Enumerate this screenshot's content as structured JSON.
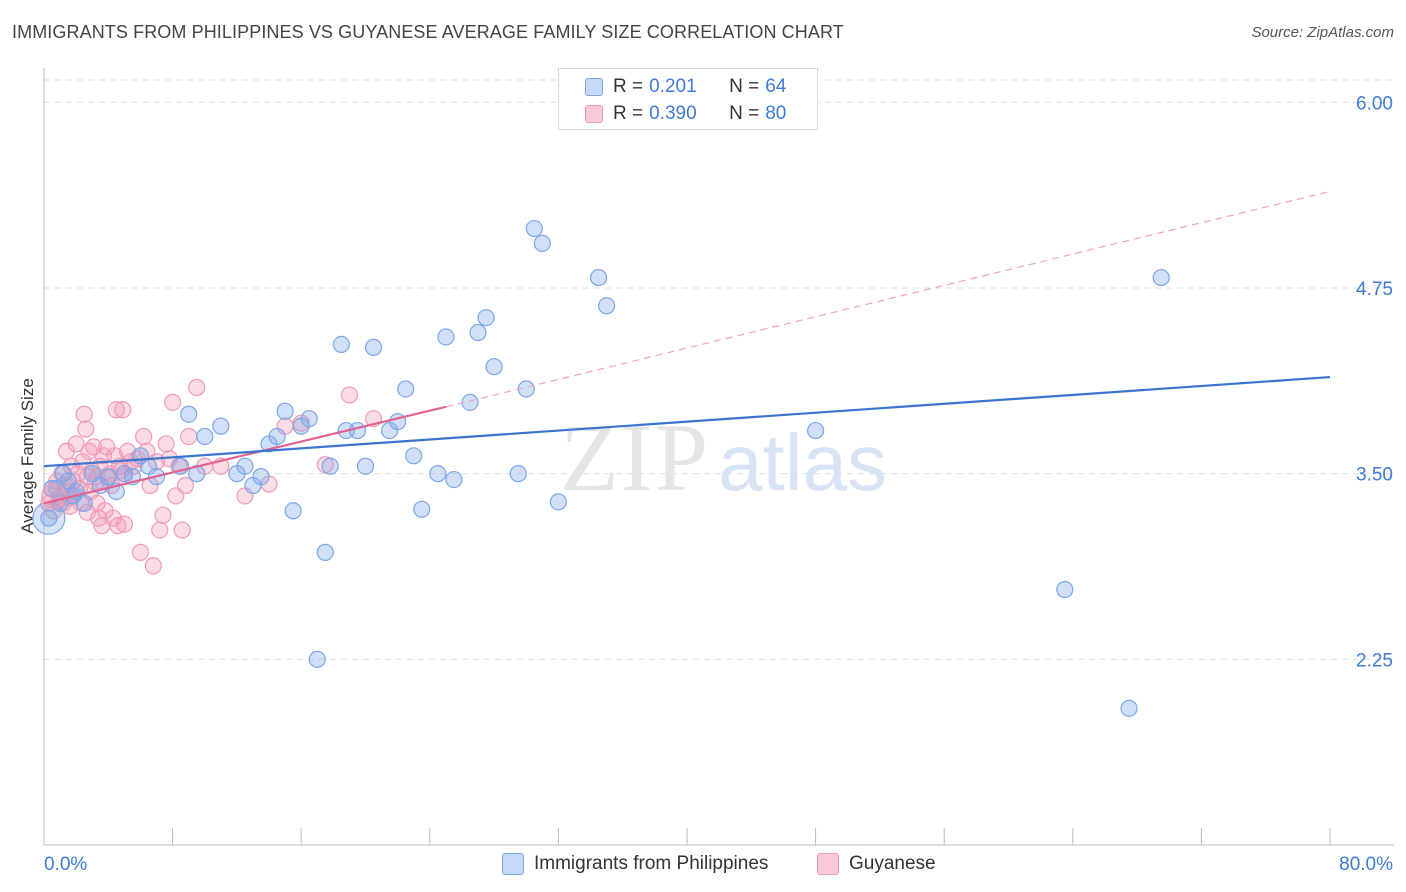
{
  "title": "IMMIGRANTS FROM PHILIPPINES VS GUYANESE AVERAGE FAMILY SIZE CORRELATION CHART",
  "source": "Source: ZipAtlas.com",
  "watermark": {
    "zip": "ZIP",
    "atlas": "atlas"
  },
  "legend": {
    "r_label": "R =",
    "n_label": "N =",
    "rows": [
      {
        "r": "0.201",
        "n": "64",
        "color": "#7aa7e8"
      },
      {
        "r": "0.390",
        "n": "80",
        "color": "#f19ab5"
      }
    ]
  },
  "colors": {
    "blue": "#3a75cf",
    "pink": "#e2628f",
    "tick_text": "#3e7bd6"
  },
  "chart_data": {
    "type": "scatter",
    "title": "IMMIGRANTS FROM PHILIPPINES VS GUYANESE AVERAGE FAMILY SIZE CORRELATION CHART",
    "xlabel": "",
    "ylabel": "Average Family Size",
    "xlim": [
      0,
      80
    ],
    "ylim": [
      1.0,
      6.15
    ],
    "x_tick_labels": [
      "0.0%",
      "80.0%"
    ],
    "y_ticks": [
      2.25,
      3.5,
      4.75,
      6.0
    ],
    "y_tick_labels": [
      "2.25",
      "3.50",
      "4.75",
      "6.00"
    ],
    "grid": true,
    "legend_position": "top-center",
    "series": [
      {
        "name": "Immigrants from Philippines",
        "color": "#7aa7e8",
        "r": 0.201,
        "n": 64,
        "trend": {
          "x": [
            0,
            80
          ],
          "y": [
            3.55,
            4.15
          ]
        },
        "points": [
          [
            0.5,
            3.4
          ],
          [
            0.8,
            3.4
          ],
          [
            1.0,
            3.3
          ],
          [
            1.2,
            3.5
          ],
          [
            1.5,
            3.45
          ],
          [
            2.0,
            3.38
          ],
          [
            2.5,
            3.3
          ],
          [
            3.0,
            3.5
          ],
          [
            3.5,
            3.42
          ],
          [
            4.0,
            3.48
          ],
          [
            4.5,
            3.38
          ],
          [
            5.0,
            3.5
          ],
          [
            5.5,
            3.48
          ],
          [
            6.0,
            3.62
          ],
          [
            6.5,
            3.55
          ],
          [
            7.0,
            3.48
          ],
          [
            8.5,
            3.55
          ],
          [
            9.0,
            3.9
          ],
          [
            10.0,
            3.75
          ],
          [
            11.0,
            3.82
          ],
          [
            12.0,
            3.5
          ],
          [
            12.5,
            3.55
          ],
          [
            13.0,
            3.42
          ],
          [
            13.5,
            3.48
          ],
          [
            14.0,
            3.7
          ],
          [
            14.5,
            3.75
          ],
          [
            15.0,
            3.92
          ],
          [
            15.5,
            3.25
          ],
          [
            16.0,
            3.82
          ],
          [
            16.5,
            3.87
          ],
          [
            17.0,
            2.25
          ],
          [
            17.5,
            2.97
          ],
          [
            17.8,
            3.55
          ],
          [
            18.5,
            4.37
          ],
          [
            18.8,
            3.79
          ],
          [
            19.5,
            3.79
          ],
          [
            20.0,
            3.55
          ],
          [
            20.5,
            4.35
          ],
          [
            21.5,
            3.79
          ],
          [
            22.0,
            3.85
          ],
          [
            22.5,
            4.07
          ],
          [
            23.0,
            3.62
          ],
          [
            23.5,
            3.26
          ],
          [
            24.5,
            3.5
          ],
          [
            25.0,
            4.42
          ],
          [
            25.5,
            3.46
          ],
          [
            26.5,
            3.98
          ],
          [
            27.0,
            4.45
          ],
          [
            27.5,
            4.55
          ],
          [
            28.0,
            4.22
          ],
          [
            29.5,
            3.5
          ],
          [
            30.0,
            4.07
          ],
          [
            30.5,
            5.15
          ],
          [
            31.0,
            5.05
          ],
          [
            32.0,
            3.31
          ],
          [
            34.5,
            4.82
          ],
          [
            35.0,
            4.63
          ],
          [
            48.0,
            3.79
          ],
          [
            63.5,
            2.72
          ],
          [
            67.5,
            1.92
          ],
          [
            69.5,
            4.82
          ],
          [
            1.8,
            3.35
          ],
          [
            9.5,
            3.5
          ],
          [
            0.3,
            3.2
          ]
        ]
      },
      {
        "name": "Guyanese",
        "color": "#f19ab5",
        "r": 0.39,
        "n": 80,
        "trend": {
          "x": [
            0,
            25
          ],
          "y": [
            3.3,
            3.95
          ]
        },
        "trend_dashed": {
          "x": [
            25,
            80
          ],
          "y": [
            3.95,
            5.4
          ]
        },
        "points": [
          [
            0.3,
            3.3
          ],
          [
            0.5,
            3.4
          ],
          [
            0.6,
            3.25
          ],
          [
            0.8,
            3.45
          ],
          [
            1.0,
            3.35
          ],
          [
            1.1,
            3.5
          ],
          [
            1.2,
            3.3
          ],
          [
            1.3,
            3.42
          ],
          [
            1.4,
            3.65
          ],
          [
            1.5,
            3.38
          ],
          [
            1.6,
            3.28
          ],
          [
            1.7,
            3.55
          ],
          [
            1.8,
            3.45
          ],
          [
            1.9,
            3.36
          ],
          [
            2.0,
            3.7
          ],
          [
            2.1,
            3.5
          ],
          [
            2.2,
            3.4
          ],
          [
            2.3,
            3.3
          ],
          [
            2.4,
            3.58
          ],
          [
            2.5,
            3.9
          ],
          [
            2.6,
            3.8
          ],
          [
            2.7,
            3.48
          ],
          [
            2.8,
            3.65
          ],
          [
            2.9,
            3.38
          ],
          [
            3.0,
            3.52
          ],
          [
            3.1,
            3.68
          ],
          [
            3.2,
            3.44
          ],
          [
            3.3,
            3.3
          ],
          [
            3.4,
            3.2
          ],
          [
            3.5,
            3.55
          ],
          [
            3.6,
            3.15
          ],
          [
            3.7,
            3.62
          ],
          [
            3.8,
            3.25
          ],
          [
            3.9,
            3.68
          ],
          [
            4.0,
            3.47
          ],
          [
            4.1,
            3.5
          ],
          [
            4.2,
            3.42
          ],
          [
            4.3,
            3.2
          ],
          [
            4.4,
            3.62
          ],
          [
            4.5,
            3.93
          ],
          [
            4.6,
            3.15
          ],
          [
            4.7,
            3.55
          ],
          [
            4.8,
            3.52
          ],
          [
            4.9,
            3.93
          ],
          [
            5.0,
            3.48
          ],
          [
            5.2,
            3.65
          ],
          [
            5.4,
            3.58
          ],
          [
            5.6,
            3.55
          ],
          [
            5.8,
            3.6
          ],
          [
            6.0,
            2.97
          ],
          [
            6.2,
            3.75
          ],
          [
            6.4,
            3.65
          ],
          [
            6.6,
            3.42
          ],
          [
            6.8,
            2.88
          ],
          [
            7.0,
            3.58
          ],
          [
            7.2,
            3.12
          ],
          [
            7.4,
            3.22
          ],
          [
            7.6,
            3.7
          ],
          [
            7.8,
            3.6
          ],
          [
            8.0,
            3.98
          ],
          [
            8.2,
            3.35
          ],
          [
            8.4,
            3.55
          ],
          [
            8.6,
            3.12
          ],
          [
            8.8,
            3.42
          ],
          [
            9.0,
            3.75
          ],
          [
            9.5,
            4.08
          ],
          [
            10.0,
            3.55
          ],
          [
            11.0,
            3.55
          ],
          [
            12.5,
            3.35
          ],
          [
            14.0,
            3.43
          ],
          [
            15.0,
            3.82
          ],
          [
            16.0,
            3.84
          ],
          [
            17.5,
            3.56
          ],
          [
            19.0,
            4.03
          ],
          [
            20.5,
            3.87
          ],
          [
            0.9,
            3.32
          ],
          [
            1.6,
            3.34
          ],
          [
            2.7,
            3.24
          ],
          [
            3.3,
            3.48
          ],
          [
            5.0,
            3.16
          ]
        ]
      }
    ]
  }
}
